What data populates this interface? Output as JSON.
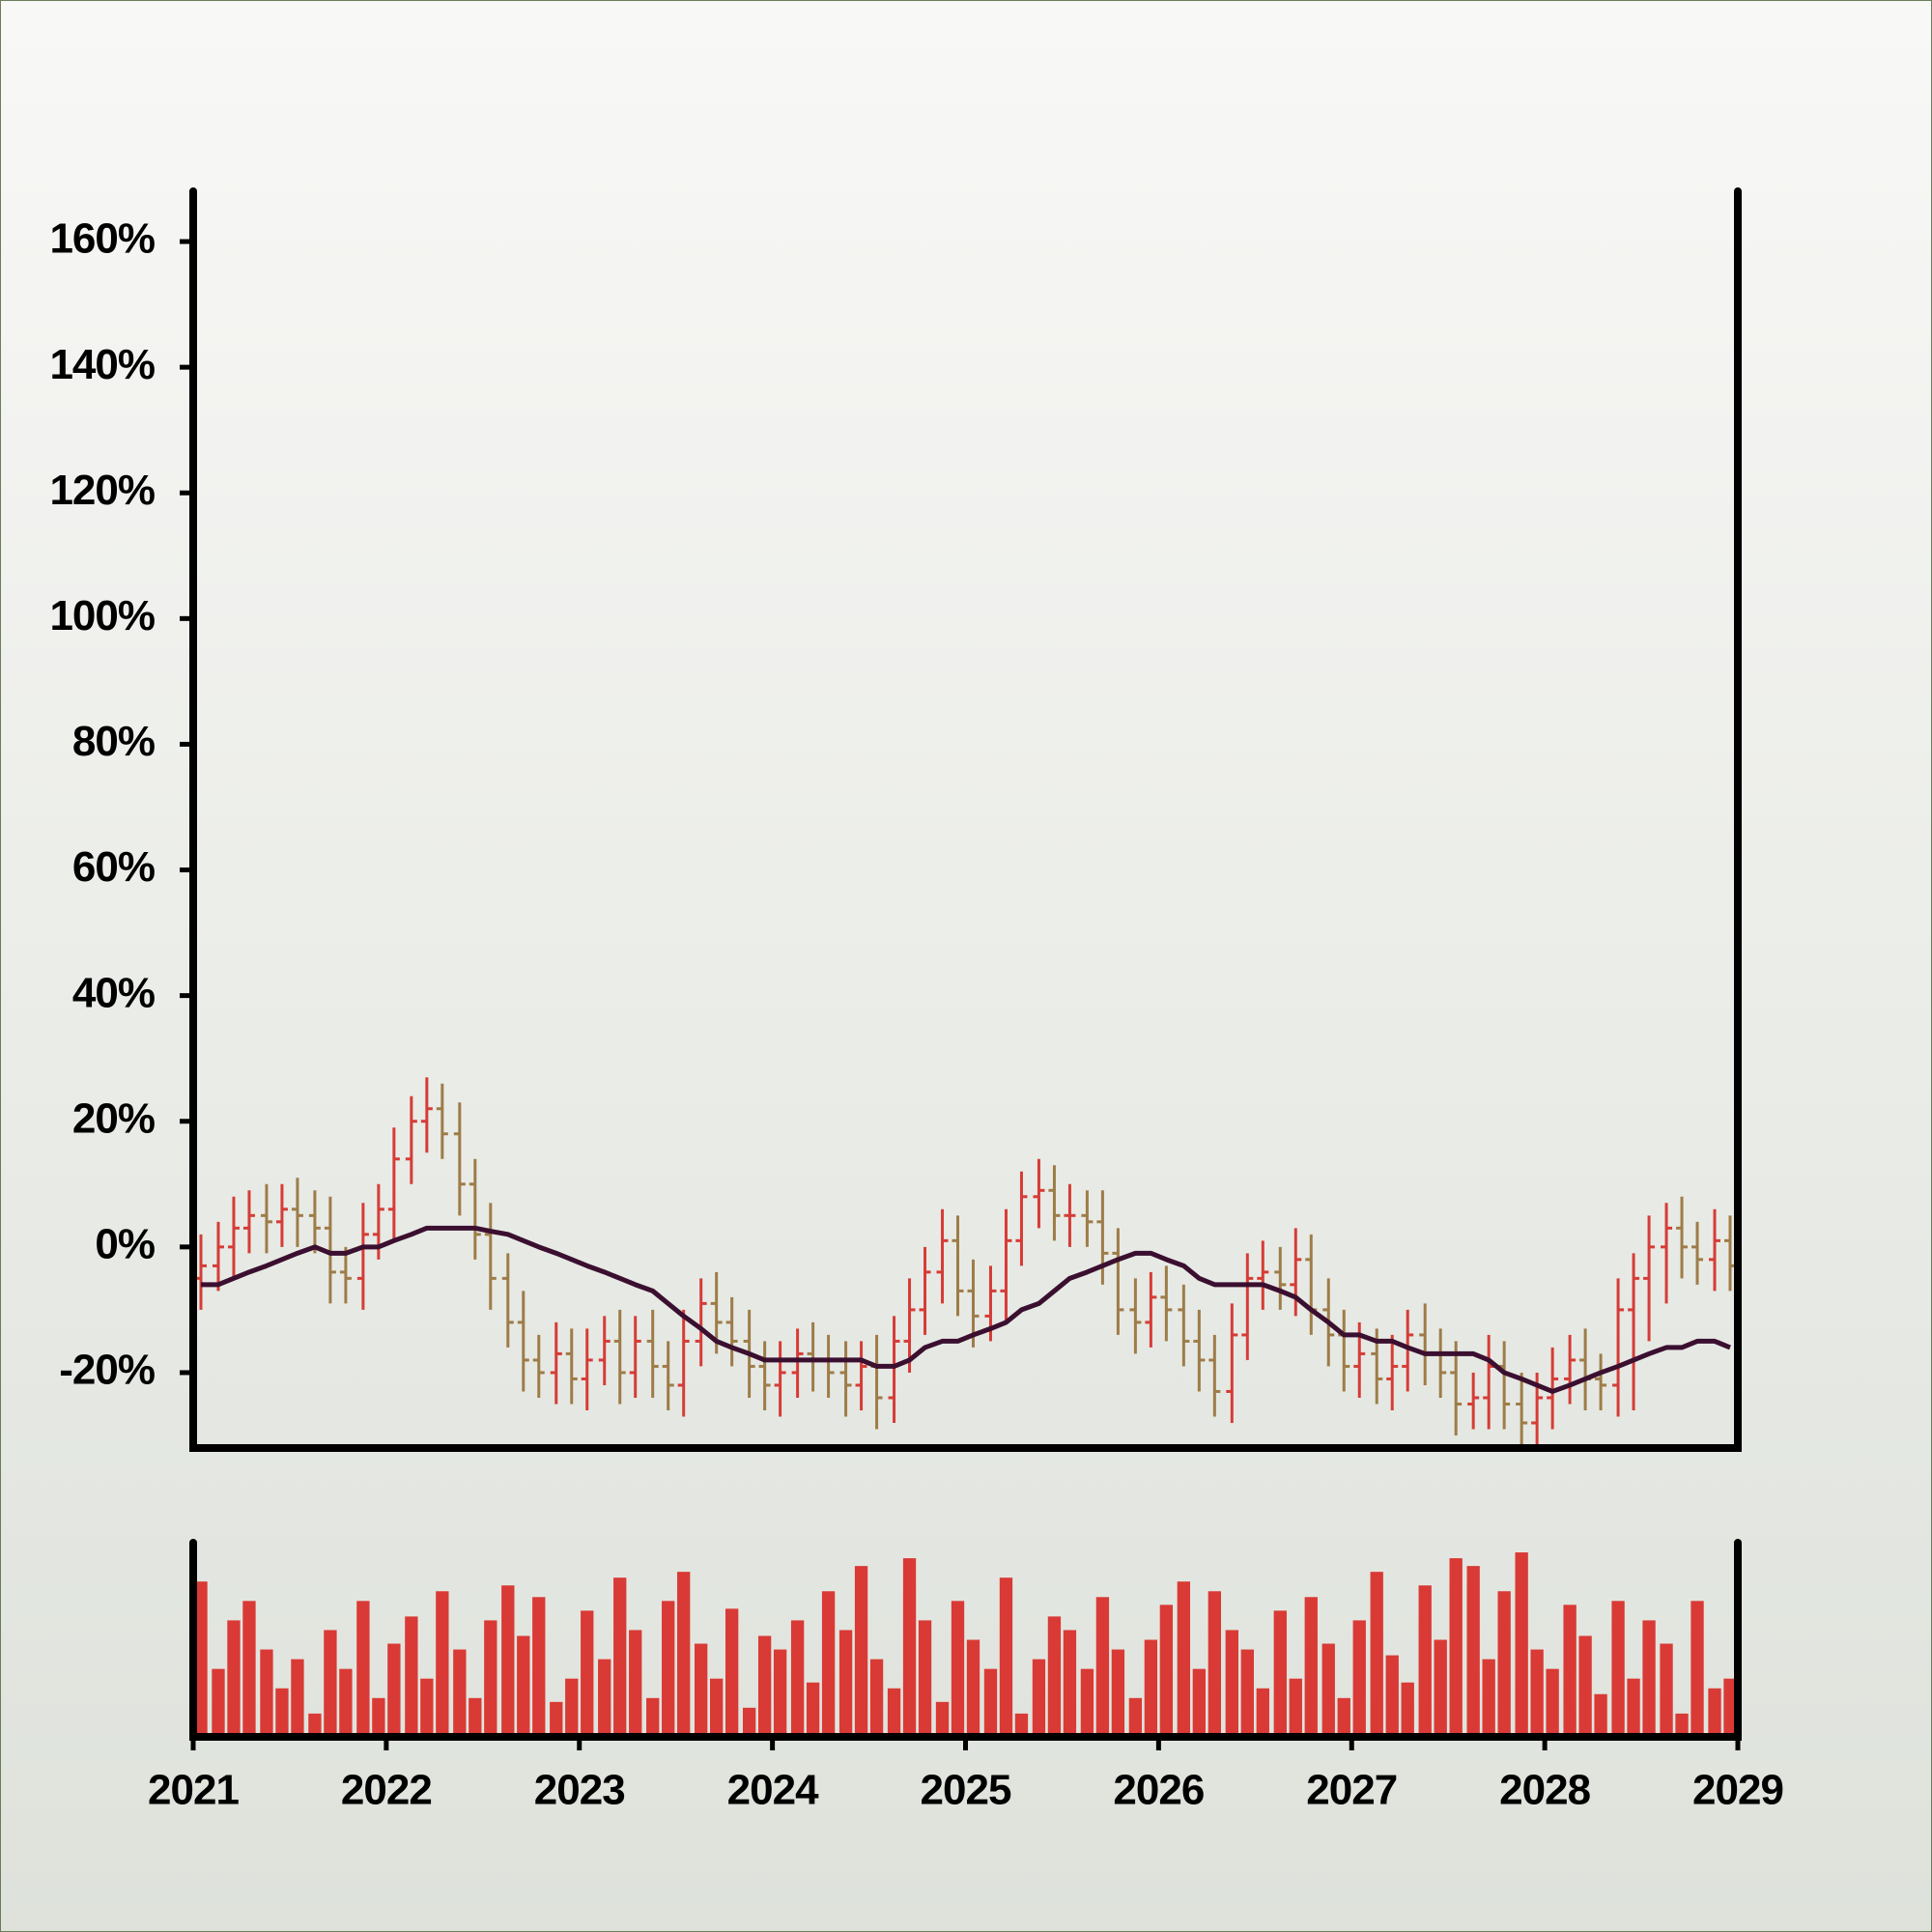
{
  "chart_data": [
    {
      "type": "ohlc",
      "x": [
        2021.04,
        2021.13,
        2021.21,
        2021.29,
        2021.38,
        2021.46,
        2021.54,
        2021.63,
        2021.71,
        2021.79,
        2021.88,
        2021.96,
        2022.04,
        2022.13,
        2022.21,
        2022.29,
        2022.38,
        2022.46,
        2022.54,
        2022.63,
        2022.71,
        2022.79,
        2022.88,
        2022.96,
        2023.04,
        2023.13,
        2023.21,
        2023.29,
        2023.38,
        2023.46,
        2023.54,
        2023.63,
        2023.71,
        2023.79,
        2023.88,
        2023.96,
        2024.04,
        2024.13,
        2024.21,
        2024.29,
        2024.38,
        2024.46,
        2024.54,
        2024.63,
        2024.71,
        2024.79,
        2024.88,
        2024.96,
        2025.04,
        2025.13,
        2025.21,
        2025.29,
        2025.38,
        2025.46,
        2025.54,
        2025.63,
        2025.71,
        2025.79,
        2025.88,
        2025.96,
        2026.04,
        2026.13,
        2026.21,
        2026.29,
        2026.38,
        2026.46,
        2026.54,
        2026.63,
        2026.71,
        2026.79,
        2026.88,
        2026.96,
        2027.04,
        2027.13,
        2027.21,
        2027.29,
        2027.38,
        2027.46,
        2027.54,
        2027.63,
        2027.71,
        2027.79,
        2027.88,
        2027.96,
        2028.04,
        2028.13,
        2028.21,
        2028.29,
        2028.38,
        2028.46,
        2028.54,
        2028.63,
        2028.71,
        2028.79,
        2028.88,
        2028.96
      ],
      "open": [
        -5,
        -3,
        0,
        3,
        5,
        4,
        6,
        5,
        3,
        -4,
        -5,
        2,
        6,
        14,
        20,
        22,
        18,
        10,
        2,
        -5,
        -12,
        -18,
        -20,
        -17,
        -21,
        -18,
        -15,
        -20,
        -15,
        -19,
        -22,
        -15,
        -9,
        -12,
        -15,
        -19,
        -22,
        -20,
        -17,
        -18,
        -20,
        -22,
        -19,
        -24,
        -15,
        -10,
        -4,
        1,
        -7,
        -11,
        -7,
        1,
        8,
        9,
        5,
        5,
        4,
        -1,
        -10,
        -12,
        -8,
        -10,
        -15,
        -18,
        -23,
        -14,
        -5,
        -4,
        -6,
        -2,
        -10,
        -14,
        -19,
        -17,
        -21,
        -19,
        -14,
        -17,
        -20,
        -25,
        -24,
        -19,
        -25,
        -28,
        -24,
        -21,
        -18,
        -21,
        -22,
        -10,
        -5,
        0,
        3,
        0,
        -2,
        1
      ],
      "high": [
        2,
        4,
        8,
        9,
        10,
        10,
        11,
        9,
        8,
        0,
        7,
        10,
        19,
        24,
        27,
        26,
        23,
        14,
        7,
        -1,
        -7,
        -14,
        -12,
        -13,
        -13,
        -11,
        -10,
        -11,
        -10,
        -15,
        -10,
        -5,
        -4,
        -8,
        -10,
        -15,
        -15,
        -13,
        -12,
        -14,
        -15,
        -15,
        -14,
        -11,
        -5,
        0,
        6,
        5,
        -2,
        -3,
        6,
        12,
        14,
        13,
        10,
        9,
        9,
        3,
        -5,
        -4,
        -3,
        -6,
        -10,
        -14,
        -9,
        -1,
        1,
        0,
        3,
        2,
        -5,
        -10,
        -12,
        -13,
        -14,
        -10,
        -9,
        -13,
        -15,
        -20,
        -14,
        -15,
        -20,
        -20,
        -16,
        -14,
        -13,
        -17,
        -5,
        -1,
        5,
        7,
        8,
        4,
        6,
        5
      ],
      "low": [
        -10,
        -7,
        -5,
        -1,
        -1,
        0,
        0,
        -1,
        -9,
        -9,
        -10,
        -2,
        1,
        10,
        15,
        14,
        5,
        -2,
        -10,
        -16,
        -23,
        -24,
        -25,
        -25,
        -26,
        -22,
        -25,
        -24,
        -24,
        -26,
        -27,
        -19,
        -17,
        -19,
        -24,
        -26,
        -27,
        -24,
        -23,
        -24,
        -27,
        -26,
        -29,
        -28,
        -20,
        -14,
        -9,
        -11,
        -16,
        -15,
        -12,
        -3,
        3,
        1,
        0,
        0,
        -6,
        -14,
        -17,
        -16,
        -15,
        -19,
        -23,
        -27,
        -28,
        -18,
        -10,
        -10,
        -11,
        -14,
        -19,
        -23,
        -24,
        -25,
        -26,
        -23,
        -22,
        -24,
        -30,
        -29,
        -29,
        -29,
        -33,
        -32,
        -29,
        -25,
        -26,
        -26,
        -27,
        -26,
        -15,
        -9,
        -5,
        -6,
        -7,
        -7
      ],
      "close": [
        -3,
        0,
        3,
        5,
        4,
        6,
        5,
        3,
        -4,
        -5,
        2,
        6,
        14,
        20,
        22,
        18,
        10,
        2,
        -5,
        -12,
        -18,
        -20,
        -17,
        -21,
        -18,
        -15,
        -20,
        -15,
        -19,
        -22,
        -15,
        -9,
        -12,
        -15,
        -19,
        -22,
        -20,
        -17,
        -18,
        -20,
        -22,
        -19,
        -24,
        -15,
        -10,
        -4,
        1,
        -7,
        -11,
        -7,
        1,
        8,
        9,
        5,
        5,
        4,
        -1,
        -10,
        -12,
        -8,
        -10,
        -15,
        -18,
        -23,
        -14,
        -5,
        -4,
        -6,
        -2,
        -10,
        -14,
        -19,
        -17,
        -21,
        -19,
        -14,
        -17,
        -20,
        -25,
        -24,
        -19,
        -25,
        -28,
        -24,
        -21,
        -18,
        -21,
        -22,
        -10,
        -5,
        0,
        3,
        0,
        -2,
        1,
        -3
      ],
      "up_color": "#d63c37",
      "down_color": "#9e7c48",
      "ma": {
        "color": "#3b0f30",
        "values": [
          -6,
          -6,
          -5,
          -4,
          -3,
          -2,
          -1,
          0,
          -1,
          -1,
          0,
          0,
          1,
          2,
          3,
          3,
          3,
          3,
          2.5,
          2,
          1,
          0,
          -1,
          -2,
          -3,
          -4,
          -5,
          -6,
          -7,
          -9,
          -11,
          -13,
          -15,
          -16,
          -17,
          -18,
          -18,
          -18,
          -18,
          -18,
          -18,
          -18,
          -19,
          -19,
          -18,
          -16,
          -15,
          -15,
          -14,
          -13,
          -12,
          -10,
          -9,
          -7,
          -5,
          -4,
          -3,
          -2,
          -1,
          -1,
          -2,
          -3,
          -5,
          -6,
          -6,
          -6,
          -6,
          -7,
          -8,
          -10,
          -12,
          -14,
          -14,
          -15,
          -15,
          -16,
          -17,
          -17,
          -17,
          -17,
          -18,
          -20,
          -21,
          -22,
          -23,
          -22,
          -21,
          -20,
          -19,
          -18,
          -17,
          -16,
          -16,
          -15,
          -15,
          -16
        ]
      },
      "xlim": [
        2021,
        2029
      ],
      "ylim": [
        -32,
        168
      ],
      "yticks": [
        {
          "value": -20,
          "label": "-20%"
        },
        {
          "value": 0,
          "label": "0%"
        },
        {
          "value": 20,
          "label": "20%"
        },
        {
          "value": 40,
          "label": "40%"
        },
        {
          "value": 60,
          "label": "60%"
        },
        {
          "value": 80,
          "label": "80%"
        },
        {
          "value": 100,
          "label": "100%"
        },
        {
          "value": 120,
          "label": "120%"
        },
        {
          "value": 140,
          "label": "140%"
        },
        {
          "value": 160,
          "label": "160%"
        }
      ]
    },
    {
      "type": "bar",
      "color": "#d93a35",
      "x": [
        2021.04,
        2021.13,
        2021.21,
        2021.29,
        2021.38,
        2021.46,
        2021.54,
        2021.63,
        2021.71,
        2021.79,
        2021.88,
        2021.96,
        2022.04,
        2022.13,
        2022.21,
        2022.29,
        2022.38,
        2022.46,
        2022.54,
        2022.63,
        2022.71,
        2022.79,
        2022.88,
        2022.96,
        2023.04,
        2023.13,
        2023.21,
        2023.29,
        2023.38,
        2023.46,
        2023.54,
        2023.63,
        2023.71,
        2023.79,
        2023.88,
        2023.96,
        2024.04,
        2024.13,
        2024.21,
        2024.29,
        2024.38,
        2024.46,
        2024.54,
        2024.63,
        2024.71,
        2024.79,
        2024.88,
        2024.96,
        2025.04,
        2025.13,
        2025.21,
        2025.29,
        2025.38,
        2025.46,
        2025.54,
        2025.63,
        2025.71,
        2025.79,
        2025.88,
        2025.96,
        2026.04,
        2026.13,
        2026.21,
        2026.29,
        2026.38,
        2026.46,
        2026.54,
        2026.63,
        2026.71,
        2026.79,
        2026.88,
        2026.96,
        2027.04,
        2027.13,
        2027.21,
        2027.29,
        2027.38,
        2027.46,
        2027.54,
        2027.63,
        2027.71,
        2027.79,
        2027.88,
        2027.96,
        2028.04,
        2028.13,
        2028.21,
        2028.29,
        2028.38,
        2028.46,
        2028.54,
        2028.63,
        2028.71,
        2028.79,
        2028.88,
        2028.96
      ],
      "values": [
        80,
        35,
        60,
        70,
        45,
        25,
        40,
        12,
        55,
        35,
        70,
        20,
        48,
        62,
        30,
        75,
        45,
        20,
        60,
        78,
        52,
        72,
        18,
        30,
        65,
        40,
        82,
        55,
        20,
        70,
        85,
        48,
        30,
        66,
        15,
        52,
        45,
        60,
        28,
        75,
        55,
        88,
        40,
        25,
        92,
        60,
        18,
        70,
        50,
        35,
        82,
        12,
        40,
        62,
        55,
        35,
        72,
        45,
        20,
        50,
        68,
        80,
        35,
        75,
        55,
        45,
        25,
        65,
        30,
        72,
        48,
        20,
        60,
        85,
        42,
        28,
        78,
        50,
        92,
        88,
        40,
        75,
        95,
        45,
        35,
        68,
        52,
        22,
        70,
        30,
        60,
        48,
        12,
        70,
        25,
        30
      ],
      "xlim": [
        2021,
        2029
      ],
      "ylim": [
        0,
        100
      ],
      "xticks": [
        2021,
        2022,
        2023,
        2024,
        2025,
        2026,
        2027,
        2028,
        2029
      ]
    }
  ]
}
